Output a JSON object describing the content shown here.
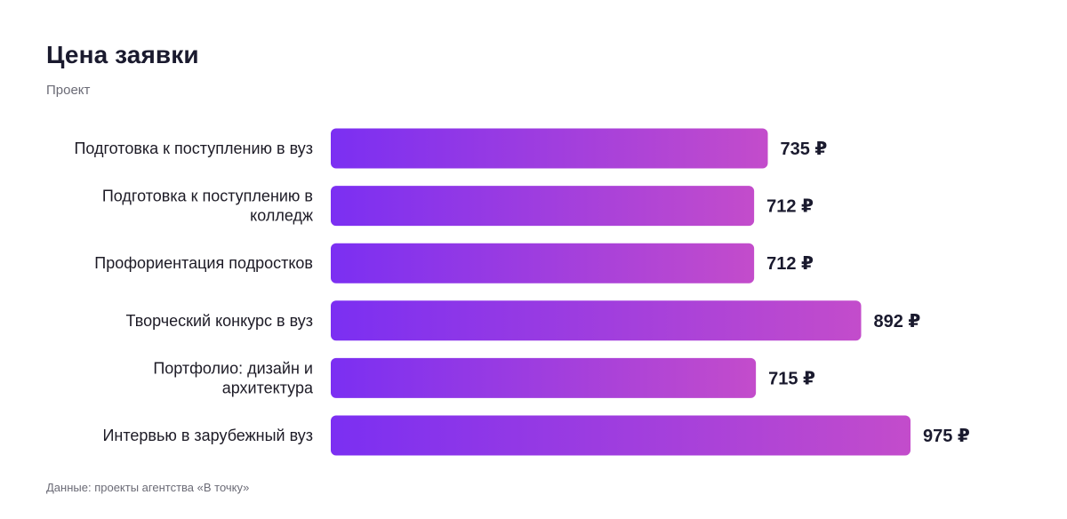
{
  "chart_data": {
    "type": "bar",
    "orientation": "horizontal",
    "title": "Цена заявки",
    "subtitle": "Проект",
    "categories": [
      "Подготовка к поступлению в вуз",
      "Подготовка к поступлению в колледж",
      "Профориентация подростков",
      "Творческий конкурс в вуз",
      "Портфолио: дизайн и архитектура",
      "Интервью в зарубежный вуз"
    ],
    "category_lines": [
      [
        "Подготовка к поступлению в вуз"
      ],
      [
        "Подготовка к поступлению в",
        "колледж"
      ],
      [
        "Профориентация подростков"
      ],
      [
        "Творческий конкурс в вуз"
      ],
      [
        "Портфолио: дизайн и",
        "архитектура"
      ],
      [
        "Интервью в зарубежный вуз"
      ]
    ],
    "values": [
      735,
      712,
      712,
      892,
      715,
      975
    ],
    "value_suffix": " ₽",
    "grid": false,
    "legend": "none",
    "bar_gradient": [
      "#7b2ff2",
      "#c34ccb"
    ],
    "source": "Данные: проекты агентства «В точку»"
  }
}
